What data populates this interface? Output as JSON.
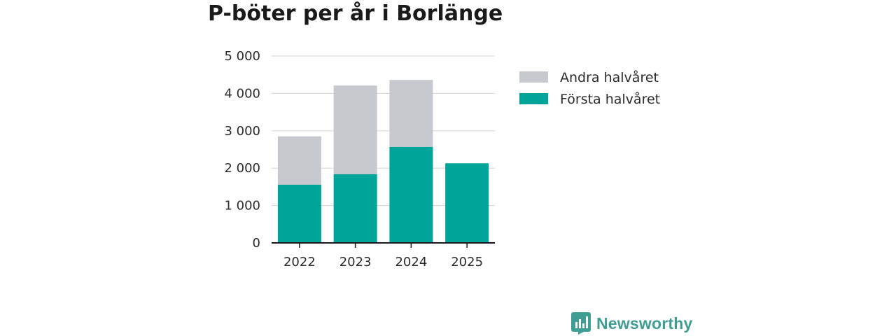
{
  "chart_data": {
    "type": "bar",
    "stacked": true,
    "title": "P-böter per år i Borlänge",
    "categories": [
      "2022",
      "2023",
      "2024",
      "2025"
    ],
    "series": [
      {
        "name": "Första halvåret",
        "color": "#00a499",
        "values": [
          1560,
          1840,
          2570,
          2130
        ]
      },
      {
        "name": "Andra halvåret",
        "color": "#c8c8cf",
        "values": [
          1290,
          2370,
          1790,
          0
        ]
      }
    ],
    "legend_order": [
      "Andra halvåret",
      "Första halvåret"
    ],
    "legend_position": "right",
    "ylim": [
      0,
      5000
    ],
    "yticks": [
      0,
      1000,
      2000,
      3000,
      4000,
      5000
    ],
    "ytick_labels": [
      "0",
      "1 000",
      "2 000",
      "3 000",
      "4 000",
      "5 000"
    ],
    "xlabel": "",
    "ylabel": "",
    "grid": true
  },
  "brand": {
    "name": "Newsworthy",
    "icon": "bar-chart-logo-icon",
    "color": "#3f9d93"
  }
}
